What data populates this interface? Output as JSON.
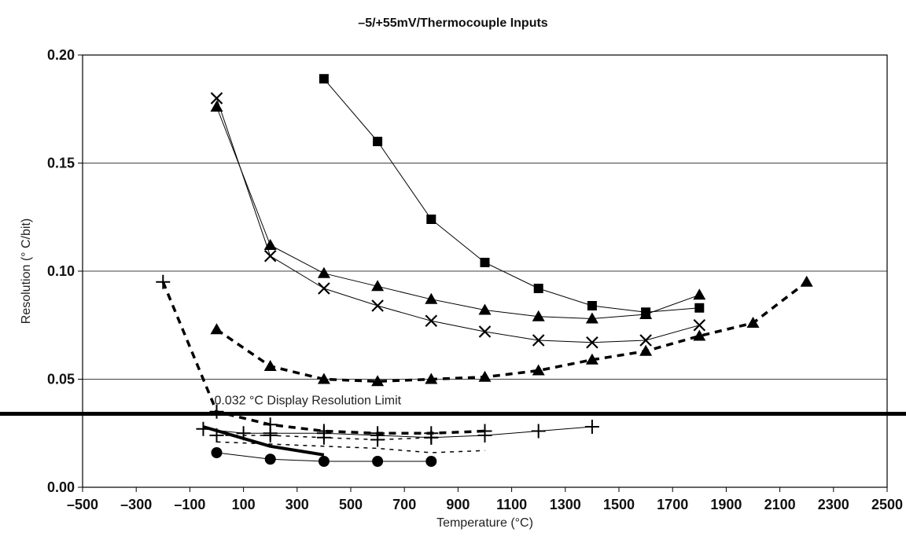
{
  "chart_data": {
    "type": "line",
    "title": "–5/+55mV/Thermocouple Inputs",
    "xlabel": "Temperature (°C)",
    "ylabel": "Resolution (° C/bit)",
    "xlim": [
      -500,
      2500
    ],
    "ylim": [
      0.0,
      0.2
    ],
    "x_ticks": [
      -500,
      -300,
      -100,
      100,
      300,
      500,
      700,
      900,
      1100,
      1300,
      1500,
      1700,
      1900,
      2100,
      2300,
      2500
    ],
    "x_tick_labels": [
      "–500",
      "–300",
      "–100",
      "100",
      "300",
      "500",
      "700",
      "900",
      "1100",
      "1300",
      "1500",
      "1700",
      "1900",
      "2100",
      "2300",
      "2500"
    ],
    "y_ticks": [
      0.0,
      0.05,
      0.1,
      0.15,
      0.2
    ],
    "y_tick_labels": [
      "0.00",
      "0.05",
      "0.10",
      "0.15",
      "0.20"
    ],
    "grid": "horizontal",
    "annotation": {
      "text": "0.032 °C Display Resolution Limit",
      "y": 0.034
    },
    "series": [
      {
        "style": "solid",
        "marker": "square",
        "x": [
          400,
          600,
          800,
          1000,
          1200,
          1400,
          1600,
          1800
        ],
        "y": [
          0.189,
          0.16,
          0.124,
          0.104,
          0.092,
          0.084,
          0.081,
          0.083
        ]
      },
      {
        "style": "solid",
        "marker": "triangle",
        "x": [
          0,
          200,
          400,
          600,
          800,
          1000,
          1200,
          1400,
          1600,
          1800
        ],
        "y": [
          0.176,
          0.112,
          0.099,
          0.093,
          0.087,
          0.082,
          0.079,
          0.078,
          0.08,
          0.089
        ]
      },
      {
        "style": "solid",
        "marker": "x",
        "x": [
          0,
          200,
          400,
          600,
          800,
          1000,
          1200,
          1400,
          1600,
          1800
        ],
        "y": [
          0.18,
          0.107,
          0.092,
          0.084,
          0.077,
          0.072,
          0.068,
          0.067,
          0.068,
          0.075
        ]
      },
      {
        "style": "dashed",
        "marker": "triangle",
        "x": [
          0,
          200,
          400,
          600,
          800,
          1000,
          1200,
          1400,
          1600,
          1800,
          2000,
          2200
        ],
        "y": [
          0.073,
          0.056,
          0.05,
          0.049,
          0.05,
          0.051,
          0.054,
          0.059,
          0.063,
          0.07,
          0.076,
          0.095
        ]
      },
      {
        "style": "dashed",
        "marker": "plus",
        "x": [
          -200,
          0,
          200,
          400,
          600,
          800,
          1000
        ],
        "y": [
          0.095,
          0.035,
          0.029,
          0.026,
          0.025,
          0.025,
          0.026
        ]
      },
      {
        "style": "solid",
        "marker": "plus",
        "x": [
          -50,
          100,
          200,
          400,
          600,
          800,
          1000,
          1200,
          1400
        ],
        "y": [
          0.027,
          0.025,
          0.025,
          0.025,
          0.024,
          0.023,
          0.024,
          0.026,
          0.028
        ]
      },
      {
        "style": "dashed-thin",
        "marker": "plus",
        "x": [
          0,
          200,
          400,
          600,
          800
        ],
        "y": [
          0.024,
          0.024,
          0.023,
          0.022,
          0.023
        ]
      },
      {
        "style": "dashed-thin",
        "marker": "none",
        "x": [
          0,
          200,
          400,
          600,
          800,
          1000
        ],
        "y": [
          0.021,
          0.02,
          0.019,
          0.018,
          0.016,
          0.017
        ]
      },
      {
        "style": "solid-thick",
        "marker": "none",
        "x": [
          -50,
          200,
          400
        ],
        "y": [
          0.028,
          0.019,
          0.015
        ]
      },
      {
        "style": "solid",
        "marker": "circle",
        "x": [
          0,
          200,
          400,
          600,
          800
        ],
        "y": [
          0.016,
          0.013,
          0.012,
          0.012,
          0.012
        ]
      }
    ]
  }
}
